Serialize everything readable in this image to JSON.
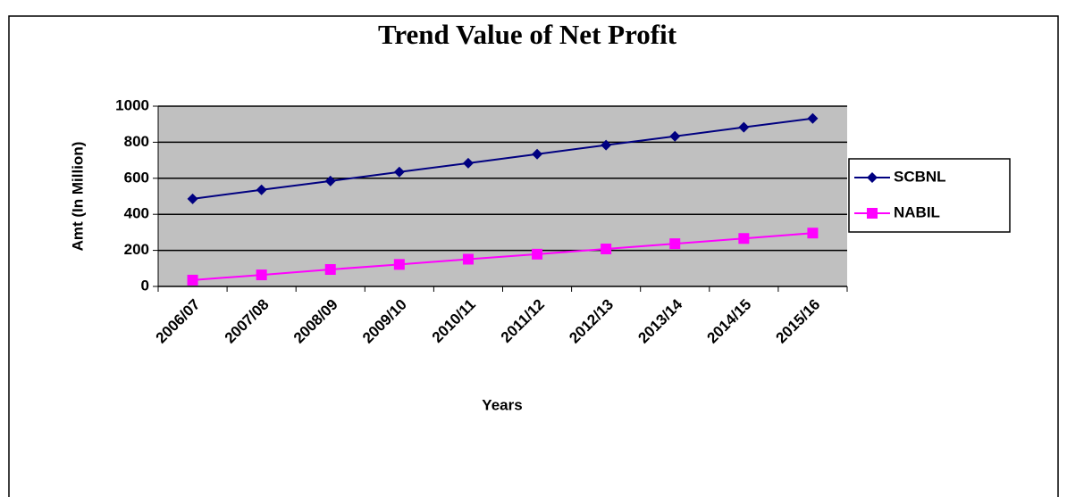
{
  "chart_data": {
    "type": "line",
    "title": "Trend Value of Net Profit",
    "x_label": "Years",
    "y_label": "Amt (In Million)",
    "categories": [
      "2006/07",
      "2007/08",
      "2008/09",
      "2009/10",
      "2010/11",
      "2011/12",
      "2012/13",
      "2013/14",
      "2014/15",
      "2015/16"
    ],
    "series": [
      {
        "name": "SCBNL",
        "color": "#000080",
        "marker": "diamond",
        "values": [
          486,
          536,
          585,
          635,
          684,
          734,
          784,
          833,
          883,
          932
        ]
      },
      {
        "name": "NABIL",
        "color": "#ff00ff",
        "marker": "square",
        "values": [
          35,
          64,
          94,
          122,
          151,
          179,
          208,
          237,
          266,
          296
        ]
      }
    ],
    "ylim": [
      0,
      1000
    ],
    "yticks": [
      0,
      200,
      400,
      600,
      800,
      1000
    ],
    "grid": true,
    "legend": "right"
  }
}
